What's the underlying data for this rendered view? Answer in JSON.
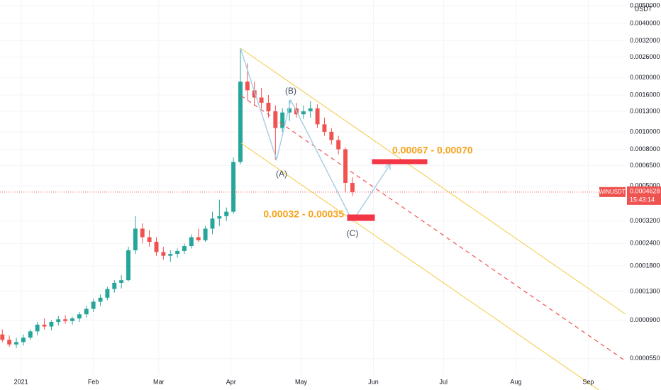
{
  "chart_data": {
    "type": "candlestick",
    "symbol": "WINUSDT",
    "currency": "USDT",
    "countdown": "15:43:14",
    "log_scale": true,
    "grid": true,
    "up_color": "#26a69a",
    "down_color": "#ef5350",
    "xlim": [
      -9,
      259
    ],
    "ylim": [
      4.5e-05,
      0.0052
    ],
    "xticks": [
      {
        "value": 0,
        "label": "2021"
      },
      {
        "value": 31,
        "label": "Feb"
      },
      {
        "value": 59,
        "label": "Mar"
      },
      {
        "value": 90,
        "label": "Apr"
      },
      {
        "value": 120,
        "label": "May"
      },
      {
        "value": 151,
        "label": "Jun"
      },
      {
        "value": 181,
        "label": "Jul"
      },
      {
        "value": 212,
        "label": "Aug"
      },
      {
        "value": 243,
        "label": "Sep"
      }
    ],
    "yticks": [
      {
        "value": 0.005,
        "label": "0.0050000"
      },
      {
        "value": 0.004,
        "label": "0.0040000"
      },
      {
        "value": 0.0032,
        "label": "0.0032000"
      },
      {
        "value": 0.0026,
        "label": "0.0026000"
      },
      {
        "value": 0.002,
        "label": "0.0020000"
      },
      {
        "value": 0.0016,
        "label": "0.0016000"
      },
      {
        "value": 0.0013,
        "label": "0.0013000"
      },
      {
        "value": 0.001,
        "label": "0.0010000"
      },
      {
        "value": 0.0008,
        "label": "0.0008000"
      },
      {
        "value": 0.00065,
        "label": "0.0006500"
      },
      {
        "value": 0.0005,
        "label": "0.0005000"
      },
      {
        "value": 0.00032,
        "label": "0.0003200"
      },
      {
        "value": 0.00024,
        "label": "0.0002400"
      },
      {
        "value": 0.00018,
        "label": "0.0001800"
      },
      {
        "value": 0.00013,
        "label": "0.0001300"
      },
      {
        "value": 9e-05,
        "label": "0.0000900"
      },
      {
        "value": 5.5e-05,
        "label": "0.0000550"
      }
    ],
    "last_price": {
      "value": 0.0004628,
      "label": "0.0004628"
    },
    "annotations": [
      "(A)",
      "(B)",
      "(C)",
      "0.00067 - 0.00070",
      "0.00032 - 0.00035"
    ],
    "x": [
      -8,
      -5,
      -2,
      1,
      4,
      7,
      10,
      13,
      16,
      19,
      22,
      25,
      28,
      31,
      34,
      37,
      40,
      43,
      46,
      49,
      52,
      55,
      58,
      61,
      64,
      67,
      70,
      73,
      76,
      79,
      82,
      85,
      88,
      91,
      94,
      97,
      100,
      103,
      106,
      109,
      112,
      115,
      118,
      121,
      124,
      127,
      130,
      133,
      136,
      139,
      142
    ],
    "open": [
      7.5e-05,
      7e-05,
      6.6e-05,
      6.8e-05,
      7.2e-05,
      7.8e-05,
      8.5e-05,
      8.3e-05,
      8.8e-05,
      9.1e-05,
      8.9e-05,
      9.2e-05,
      9.7e-05,
      0.000104,
      0.000114,
      0.00012,
      0.000134,
      0.000145,
      0.00015,
      0.00022,
      0.00029,
      0.00026,
      0.000245,
      0.000215,
      0.000205,
      0.00021,
      0.000218,
      0.000232,
      0.00026,
      0.00025,
      0.00029,
      0.00033,
      0.00034,
      0.00036,
      0.00068,
      0.0019,
      0.0017,
      0.00155,
      0.00145,
      0.0013,
      0.00105,
      0.00128,
      0.00135,
      0.00125,
      0.0013,
      0.00135,
      0.0011,
      0.001,
      0.0009,
      0.0008,
      0.00052
    ],
    "high": [
      8e-05,
      7.4e-05,
      7.2e-05,
      7.5e-05,
      8e-05,
      8.8e-05,
      9.2e-05,
      9e-05,
      9.5e-05,
      9.6e-05,
      9.4e-05,
      0.0001,
      0.000108,
      0.000118,
      0.000125,
      0.000138,
      0.00015,
      0.00016,
      0.00023,
      0.00034,
      0.00031,
      0.000285,
      0.00026,
      0.00023,
      0.00022,
      0.000225,
      0.00024,
      0.00027,
      0.00029,
      0.0003,
      0.00036,
      0.00042,
      0.00038,
      0.00072,
      0.0029,
      0.0024,
      0.0019,
      0.00175,
      0.0016,
      0.0014,
      0.00135,
      0.0015,
      0.00145,
      0.0014,
      0.00148,
      0.00142,
      0.0012,
      0.00105,
      0.00095,
      0.00082,
      0.00056
    ],
    "low": [
      6.8e-05,
      6.4e-05,
      6.3e-05,
      6.5e-05,
      7e-05,
      7.4e-05,
      8e-05,
      7.9e-05,
      8.4e-05,
      8.6e-05,
      8.5e-05,
      8.8e-05,
      9.3e-05,
      0.0001,
      0.000108,
      0.000116,
      0.000128,
      0.000135,
      0.000148,
      0.00021,
      0.00024,
      0.00023,
      0.000205,
      0.000195,
      0.00019,
      0.0002,
      0.00021,
      0.000225,
      0.000245,
      0.000245,
      0.00027,
      0.0003,
      0.00032,
      0.00035,
      0.00066,
      0.0015,
      0.0014,
      0.00135,
      0.0012,
      0.0007,
      0.001,
      0.00115,
      0.0012,
      0.00118,
      0.0012,
      0.00105,
      0.00095,
      0.00085,
      0.00075,
      0.00046,
      0.00044
    ],
    "close": [
      7e-05,
      6.6e-05,
      6.8e-05,
      7.2e-05,
      7.8e-05,
      8.5e-05,
      8.3e-05,
      8.8e-05,
      9.1e-05,
      8.9e-05,
      9.2e-05,
      9.7e-05,
      0.000104,
      0.000114,
      0.00012,
      0.000134,
      0.000145,
      0.00015,
      0.00022,
      0.00029,
      0.00026,
      0.000245,
      0.000215,
      0.000205,
      0.00021,
      0.000218,
      0.000232,
      0.00026,
      0.00025,
      0.00029,
      0.00033,
      0.00034,
      0.00036,
      0.00068,
      0.0019,
      0.0017,
      0.00155,
      0.00145,
      0.0013,
      0.00105,
      0.00128,
      0.00135,
      0.00125,
      0.0013,
      0.00135,
      0.0011,
      0.001,
      0.0009,
      0.0008,
      0.00052,
      0.000463
    ]
  }
}
